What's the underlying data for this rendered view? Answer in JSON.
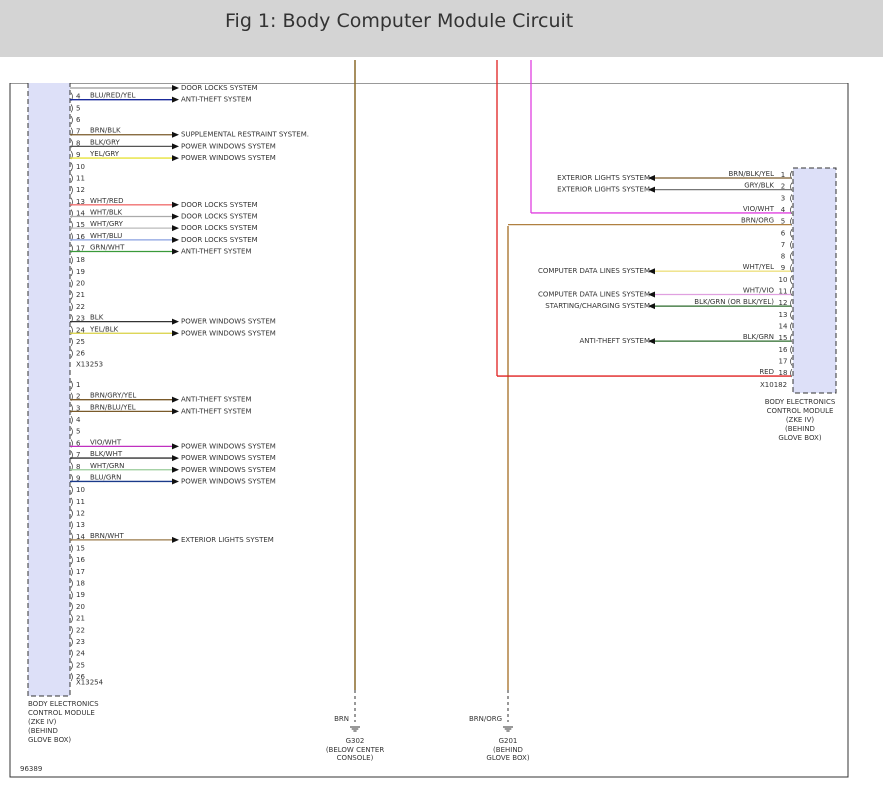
{
  "header": {
    "title": "Fig 1: Body Computer Module Circuit"
  },
  "left_module": {
    "connectors": [
      {
        "name": "X13253",
        "rows": [
          {
            "color": "#999999",
            "dest": "DOOR LOCKS SYSTEM"
          },
          {
            "pin": "4",
            "wire": "BLU/RED/YEL",
            "color": "#1a2a9a",
            "dest": "ANTI-THEFT SYSTEM"
          },
          {
            "pin": "5"
          },
          {
            "pin": "6"
          },
          {
            "pin": "7",
            "wire": "BRN/BLK",
            "color": "#7a5a2a",
            "dest": "SUPPLEMENTAL RESTRAINT SYSTEM."
          },
          {
            "pin": "8",
            "wire": "BLK/GRY",
            "color": "#555555",
            "dest": "POWER WINDOWS SYSTEM"
          },
          {
            "pin": "9",
            "wire": "YEL/GRY",
            "color": "#e6e23a",
            "dest": "POWER WINDOWS SYSTEM"
          },
          {
            "pin": "10"
          },
          {
            "pin": "11"
          },
          {
            "pin": "12"
          },
          {
            "pin": "13",
            "wire": "WHT/RED",
            "color": "#f07070",
            "dest": "DOOR LOCKS SYSTEM"
          },
          {
            "pin": "14",
            "wire": "WHT/BLK",
            "color": "#aaaaaa",
            "dest": "DOOR LOCKS SYSTEM"
          },
          {
            "pin": "15",
            "wire": "WHT/GRY",
            "color": "#bbbbbb",
            "dest": "DOOR LOCKS SYSTEM"
          },
          {
            "pin": "16",
            "wire": "WHT/BLU",
            "color": "#8aa0e0",
            "dest": "DOOR LOCKS SYSTEM"
          },
          {
            "pin": "17",
            "wire": "GRN/WHT",
            "color": "#3a9a3a",
            "dest": "ANTI-THEFT SYSTEM"
          },
          {
            "pin": "18"
          },
          {
            "pin": "19"
          },
          {
            "pin": "20"
          },
          {
            "pin": "21"
          },
          {
            "pin": "22"
          },
          {
            "pin": "23",
            "wire": "BLK",
            "color": "#333333",
            "dest": "POWER WINDOWS SYSTEM"
          },
          {
            "pin": "24",
            "wire": "YEL/BLK",
            "color": "#d8d040",
            "dest": "POWER WINDOWS SYSTEM"
          },
          {
            "pin": "25"
          },
          {
            "pin": "26"
          }
        ]
      },
      {
        "name": "X13254",
        "rows": [
          {
            "pin": "1"
          },
          {
            "pin": "2",
            "wire": "BRN/GRY/YEL",
            "color": "#7a5a2a",
            "dest": "ANTI-THEFT SYSTEM"
          },
          {
            "pin": "3",
            "wire": "BRN/BLU/YEL",
            "color": "#7a5a2a",
            "dest": "ANTI-THEFT SYSTEM"
          },
          {
            "pin": "4"
          },
          {
            "pin": "5"
          },
          {
            "pin": "6",
            "wire": "VIO/WHT",
            "color": "#c030c0",
            "dest": "POWER WINDOWS SYSTEM"
          },
          {
            "pin": "7",
            "wire": "BLK/WHT",
            "color": "#333333",
            "dest": "POWER WINDOWS SYSTEM"
          },
          {
            "pin": "8",
            "wire": "WHT/GRN",
            "color": "#99cc99",
            "dest": "POWER WINDOWS SYSTEM"
          },
          {
            "pin": "9",
            "wire": "BLU/GRN",
            "color": "#1a3a8a",
            "dest": "POWER WINDOWS SYSTEM"
          },
          {
            "pin": "10"
          },
          {
            "pin": "11"
          },
          {
            "pin": "12"
          },
          {
            "pin": "13"
          },
          {
            "pin": "14",
            "wire": "BRN/WHT",
            "color": "#9a7a4a",
            "dest": "EXTERIOR LIGHTS SYSTEM"
          },
          {
            "pin": "15"
          },
          {
            "pin": "16"
          },
          {
            "pin": "17"
          },
          {
            "pin": "18"
          },
          {
            "pin": "19"
          },
          {
            "pin": "20"
          },
          {
            "pin": "21"
          },
          {
            "pin": "22"
          },
          {
            "pin": "23"
          },
          {
            "pin": "24"
          },
          {
            "pin": "25"
          },
          {
            "pin": "26"
          }
        ]
      }
    ],
    "label": [
      "BODY ELECTRONICS",
      "CONTROL MODULE",
      "(ZKE IV)",
      "(BEHIND",
      "GLOVE BOX)"
    ]
  },
  "right_module": {
    "connector": {
      "name": "X10182",
      "rows": [
        {
          "pin": "1",
          "wire": "BRN/BLK/YEL",
          "color": "#7a5a2a",
          "dest": "EXTERIOR LIGHTS SYSTEM"
        },
        {
          "pin": "2",
          "wire": "GRY/BLK",
          "color": "#777777",
          "dest": "EXTERIOR LIGHTS SYSTEM"
        },
        {
          "pin": "3"
        },
        {
          "pin": "4",
          "wire": "VIO/WHT",
          "color": "#e040e0"
        },
        {
          "pin": "5",
          "wire": "BRN/ORG",
          "color": "#b08040"
        },
        {
          "pin": "6"
        },
        {
          "pin": "7"
        },
        {
          "pin": "8"
        },
        {
          "pin": "9",
          "wire": "WHT/YEL",
          "color": "#eee080",
          "dest": "COMPUTER DATA LINES SYSTEM"
        },
        {
          "pin": "10"
        },
        {
          "pin": "11",
          "wire": "WHT/VIO",
          "color": "#e0a0e0",
          "dest": "COMPUTER DATA LINES SYSTEM"
        },
        {
          "pin": "12",
          "wire": "BLK/GRN (OR BLK/YEL)",
          "color": "#2a6a2a",
          "dest": "STARTING/CHARGING SYSTEM"
        },
        {
          "pin": "13"
        },
        {
          "pin": "14"
        },
        {
          "pin": "15",
          "wire": "BLK/GRN",
          "color": "#2a6a2a",
          "dest": "ANTI-THEFT SYSTEM"
        },
        {
          "pin": "16"
        },
        {
          "pin": "17"
        },
        {
          "pin": "18",
          "wire": "RED",
          "color": "#e02020"
        }
      ]
    },
    "label": [
      "BODY ELECTRONICS",
      "CONTROL MODULE",
      "(ZKE IV)",
      "(BEHIND",
      "GLOVE BOX)"
    ]
  },
  "grounds": [
    {
      "wire": "BRN",
      "color": "#8a6a2a",
      "name": "G302",
      "location": [
        "(BELOW CENTER",
        "CONSOLE)"
      ]
    },
    {
      "wire": "BRN/ORG",
      "color": "#b08040",
      "name": "G201",
      "location": [
        "(BEHIND",
        "GLOVE BOX)"
      ]
    }
  ],
  "footer": {
    "id": "96389"
  }
}
